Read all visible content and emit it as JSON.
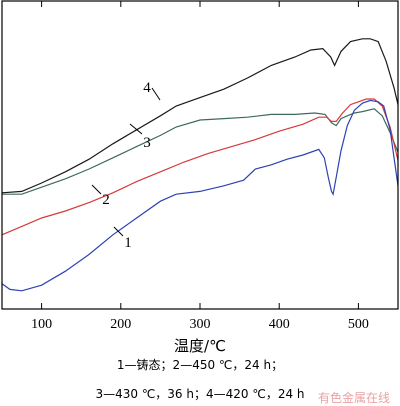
{
  "chart_data": {
    "type": "line",
    "xlabel": "温度/℃",
    "ylabel": "",
    "xlim": [
      50,
      550
    ],
    "x_ticks": [
      100,
      200,
      300,
      400,
      500
    ],
    "y_ticks_shown": false,
    "grid": false,
    "series": [
      {
        "name": "4",
        "color": "#1a1a1a",
        "points": [
          [
            50,
            13
          ],
          [
            75,
            14
          ],
          [
            100,
            20
          ],
          [
            130,
            28
          ],
          [
            160,
            37
          ],
          [
            190,
            48
          ],
          [
            220,
            58
          ],
          [
            250,
            68
          ],
          [
            270,
            75
          ],
          [
            300,
            81
          ],
          [
            330,
            87
          ],
          [
            360,
            95
          ],
          [
            390,
            104
          ],
          [
            420,
            110
          ],
          [
            440,
            115
          ],
          [
            455,
            116
          ],
          [
            465,
            110
          ],
          [
            470,
            104
          ],
          [
            478,
            114
          ],
          [
            490,
            121
          ],
          [
            505,
            123
          ],
          [
            515,
            123
          ],
          [
            525,
            121
          ],
          [
            535,
            107
          ],
          [
            545,
            88
          ],
          [
            550,
            76
          ]
        ]
      },
      {
        "name": "3",
        "color": "#3e6b5a",
        "points": [
          [
            50,
            12
          ],
          [
            75,
            12
          ],
          [
            100,
            17
          ],
          [
            130,
            23
          ],
          [
            160,
            30
          ],
          [
            190,
            38
          ],
          [
            220,
            46
          ],
          [
            250,
            54
          ],
          [
            270,
            60
          ],
          [
            300,
            65
          ],
          [
            330,
            66
          ],
          [
            360,
            67
          ],
          [
            390,
            69
          ],
          [
            420,
            69
          ],
          [
            445,
            70
          ],
          [
            458,
            69
          ],
          [
            466,
            63
          ],
          [
            472,
            61
          ],
          [
            478,
            66
          ],
          [
            486,
            68
          ],
          [
            495,
            70
          ],
          [
            505,
            71
          ],
          [
            520,
            73
          ],
          [
            530,
            68
          ],
          [
            540,
            56
          ],
          [
            550,
            42
          ]
        ]
      },
      {
        "name": "2",
        "color": "#d63a3a",
        "points": [
          [
            50,
            -17
          ],
          [
            75,
            -11
          ],
          [
            100,
            -5
          ],
          [
            130,
            0
          ],
          [
            160,
            6
          ],
          [
            190,
            13
          ],
          [
            220,
            21
          ],
          [
            250,
            28
          ],
          [
            280,
            35
          ],
          [
            310,
            41
          ],
          [
            340,
            46
          ],
          [
            370,
            51
          ],
          [
            400,
            57
          ],
          [
            430,
            62
          ],
          [
            450,
            67
          ],
          [
            460,
            67
          ],
          [
            466,
            64
          ],
          [
            472,
            64
          ],
          [
            480,
            70
          ],
          [
            490,
            76
          ],
          [
            500,
            78
          ],
          [
            510,
            80
          ],
          [
            520,
            80
          ],
          [
            530,
            75
          ],
          [
            540,
            60
          ],
          [
            550,
            36
          ]
        ]
      },
      {
        "name": "1",
        "color": "#2d42b4",
        "points": [
          [
            50,
            -52
          ],
          [
            60,
            -56
          ],
          [
            75,
            -57
          ],
          [
            100,
            -53
          ],
          [
            130,
            -43
          ],
          [
            160,
            -31
          ],
          [
            190,
            -17
          ],
          [
            220,
            -5
          ],
          [
            250,
            7
          ],
          [
            270,
            12
          ],
          [
            300,
            14
          ],
          [
            330,
            18
          ],
          [
            355,
            22
          ],
          [
            370,
            30
          ],
          [
            390,
            33
          ],
          [
            410,
            37
          ],
          [
            430,
            40
          ],
          [
            450,
            44
          ],
          [
            457,
            38
          ],
          [
            462,
            24
          ],
          [
            466,
            14
          ],
          [
            468,
            12
          ],
          [
            472,
            24
          ],
          [
            478,
            43
          ],
          [
            486,
            61
          ],
          [
            495,
            72
          ],
          [
            505,
            77
          ],
          [
            515,
            79
          ],
          [
            525,
            78
          ],
          [
            532,
            75
          ],
          [
            540,
            58
          ],
          [
            550,
            18
          ]
        ]
      }
    ],
    "annotations": [
      "1",
      "2",
      "3",
      "4"
    ]
  },
  "caption": {
    "line1": "1—铸态；2—450 ℃，24 h；",
    "line2": "3—430 ℃，36 h；4—420 ℃，24 h"
  },
  "watermark": "有色金属在线",
  "colors": {
    "axis": "#000000",
    "background": "#ffffff"
  }
}
